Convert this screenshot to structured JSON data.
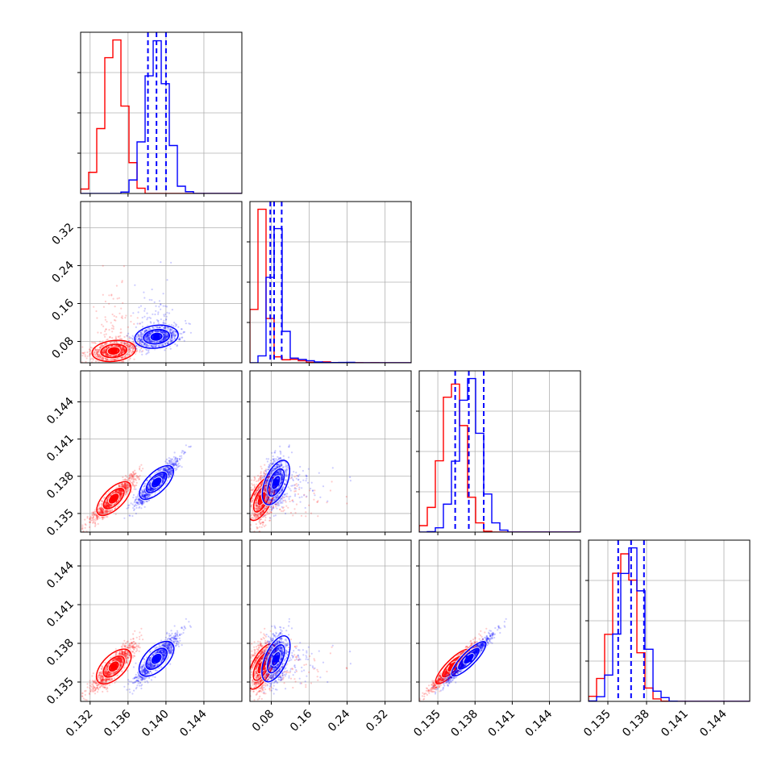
{
  "chart_data": {
    "type": "scatter",
    "title": "",
    "description_kind": "corner plot of posterior samples, two sample sets",
    "series": [
      {
        "color": "#ff0000",
        "means": [
          0.1345,
          0.06,
          0.1362,
          0.1362
        ],
        "sds": [
          0.0011,
          0.01,
          0.0009,
          0.0009
        ]
      },
      {
        "color": "#0000ff",
        "means": [
          0.139,
          0.09,
          0.1375,
          0.1368
        ],
        "sds": [
          0.0011,
          0.011,
          0.0009,
          0.0009
        ]
      }
    ],
    "params": [
      {
        "range": [
          0.131,
          0.148
        ],
        "ticks": [
          "0.132",
          "0.136",
          "0.140",
          "0.144"
        ],
        "tick_values": [
          0.132,
          0.136,
          0.14,
          0.144
        ]
      },
      {
        "range": [
          0.035,
          0.375
        ],
        "ticks": [
          "0.08",
          "0.16",
          "0.24",
          "0.32"
        ],
        "tick_values": [
          0.08,
          0.16,
          0.24,
          0.32
        ]
      },
      {
        "range": [
          0.1335,
          0.1465
        ],
        "ticks": [
          "0.135",
          "0.138",
          "0.141",
          "0.144"
        ],
        "tick_values": [
          0.135,
          0.138,
          0.141,
          0.144
        ]
      },
      {
        "range": [
          0.1335,
          0.146
        ],
        "ticks": [
          "0.135",
          "0.138",
          "0.141",
          "0.144"
        ],
        "tick_values": [
          0.135,
          0.138,
          0.141,
          0.144
        ]
      }
    ],
    "diagonal_quantiles_blue": [
      [
        0.1381,
        0.139,
        0.14
      ],
      [
        0.078,
        0.086,
        0.102
      ],
      [
        0.1364,
        0.1375,
        0.1387
      ],
      [
        0.1358,
        0.1368,
        0.1378
      ]
    ],
    "grid": true,
    "legend": "none"
  }
}
